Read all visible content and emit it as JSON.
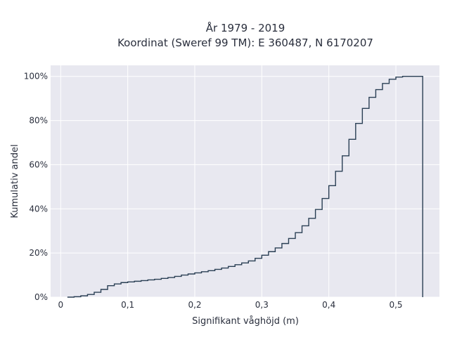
{
  "chart_data": {
    "type": "line",
    "step": true,
    "title": [
      "År 1979 - 2019",
      "Koordinat (Sweref 99 TM): E 360487, N 6170207"
    ],
    "xlabel": "Signifikant våghöjd (m)",
    "ylabel": "Kumulativ andel",
    "xlim": [
      -0.015,
      0.565
    ],
    "ylim": [
      0,
      1.05
    ],
    "x_ticks": [
      0,
      0.1,
      0.2,
      0.3,
      0.4,
      0.5
    ],
    "x_tick_labels": [
      "0",
      "0,1",
      "0,2",
      "0,3",
      "0,4",
      "0,5"
    ],
    "y_ticks": [
      0,
      0.2,
      0.4,
      0.6,
      0.8,
      1.0
    ],
    "y_tick_labels": [
      "0%",
      "20%",
      "40%",
      "60%",
      "80%",
      "100%"
    ],
    "grid": true,
    "colors": {
      "line": "#2a3f54",
      "plot_bg": "#e8e8f0",
      "grid": "#ffffff"
    },
    "series": [
      {
        "x": [
          0.01,
          0.02,
          0.03,
          0.04,
          0.05,
          0.06,
          0.07,
          0.08,
          0.09,
          0.1,
          0.11,
          0.12,
          0.13,
          0.14,
          0.15,
          0.16,
          0.17,
          0.18,
          0.19,
          0.2,
          0.21,
          0.22,
          0.23,
          0.24,
          0.25,
          0.26,
          0.27,
          0.28,
          0.29,
          0.3,
          0.31,
          0.32,
          0.33,
          0.34,
          0.35,
          0.36,
          0.37,
          0.38,
          0.39,
          0.4,
          0.41,
          0.42,
          0.43,
          0.44,
          0.45,
          0.46,
          0.47,
          0.48,
          0.49,
          0.5,
          0.51,
          0.52,
          0.53,
          0.54
        ],
        "y": [
          0.0,
          0.002,
          0.006,
          0.012,
          0.022,
          0.035,
          0.052,
          0.06,
          0.066,
          0.069,
          0.072,
          0.075,
          0.078,
          0.081,
          0.085,
          0.089,
          0.094,
          0.1,
          0.105,
          0.11,
          0.115,
          0.12,
          0.126,
          0.132,
          0.139,
          0.147,
          0.155,
          0.164,
          0.176,
          0.19,
          0.206,
          0.223,
          0.243,
          0.266,
          0.292,
          0.323,
          0.357,
          0.397,
          0.447,
          0.505,
          0.57,
          0.64,
          0.715,
          0.787,
          0.855,
          0.905,
          0.94,
          0.968,
          0.987,
          0.997,
          1.0,
          1.0,
          1.0,
          1.0
        ]
      }
    ]
  }
}
